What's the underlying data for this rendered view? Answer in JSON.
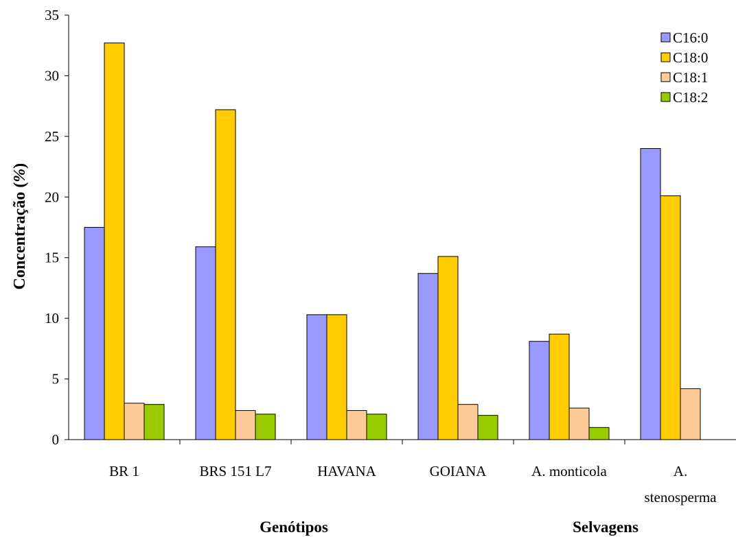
{
  "chart_data": {
    "type": "bar",
    "ylabel_plain": "Concentração (",
    "ylabel_italic": "%",
    "ylabel_close": ")",
    "ylim": [
      0,
      35
    ],
    "yticks": [
      0,
      5,
      10,
      15,
      20,
      25,
      30,
      35
    ],
    "categories": [
      [
        "BR 1"
      ],
      [
        "BRS 151 L7"
      ],
      [
        "HAVANA"
      ],
      [
        "GOIANA"
      ],
      [
        "A. monticola"
      ],
      [
        "A.",
        "stenosperma"
      ]
    ],
    "group_labels": [
      "Genótipos",
      "Selvagens"
    ],
    "legend_position": "top-right",
    "series": [
      {
        "name": "C16:0",
        "color": "#9999ff",
        "values": [
          17.5,
          15.9,
          10.3,
          13.7,
          8.1,
          24.0
        ]
      },
      {
        "name": "C18:0",
        "color": "#ffcc00",
        "values": [
          32.7,
          27.2,
          10.3,
          15.1,
          8.7,
          20.1
        ]
      },
      {
        "name": "C18:1",
        "color": "#ffcc99",
        "values": [
          3.0,
          2.4,
          2.4,
          2.9,
          2.6,
          4.2
        ]
      },
      {
        "name": "C18:2",
        "color": "#99cc00",
        "values": [
          2.9,
          2.1,
          2.1,
          2.0,
          1.0,
          null
        ]
      }
    ]
  }
}
